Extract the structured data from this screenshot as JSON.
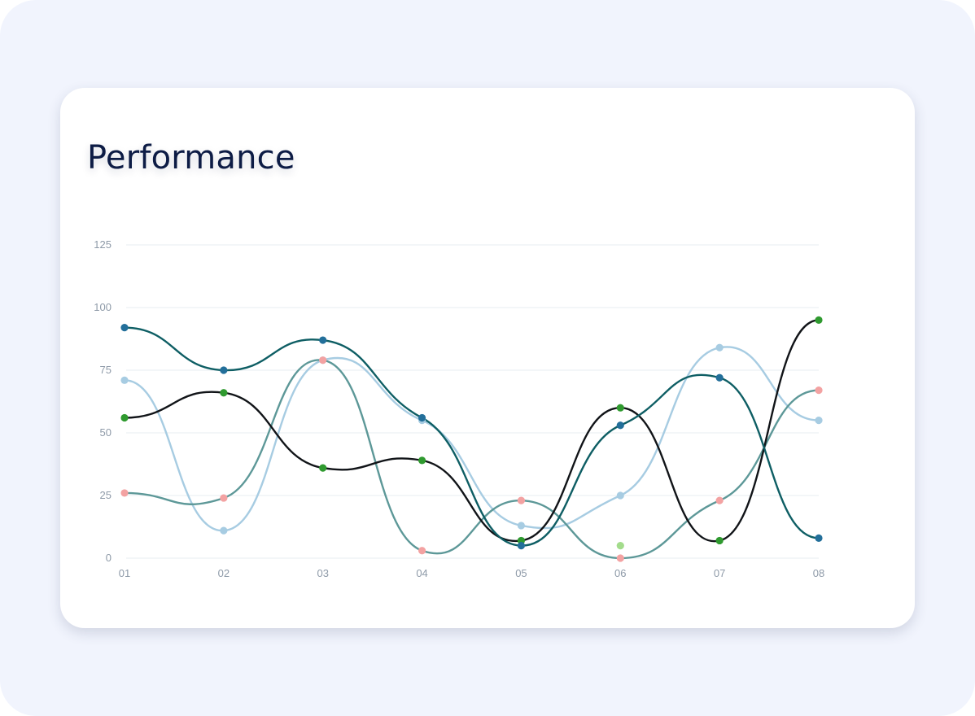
{
  "card": {
    "title": "Performance"
  },
  "chart_data": {
    "type": "line",
    "title": "Performance",
    "xlabel": "",
    "ylabel": "",
    "categories": [
      "01",
      "02",
      "03",
      "04",
      "05",
      "06",
      "07",
      "08"
    ],
    "y_ticks": [
      "0",
      "25",
      "50",
      "75",
      "100",
      "125"
    ],
    "ylim": [
      0,
      125
    ],
    "grid": true,
    "legend": "none",
    "series": [
      {
        "color": "#0e5e64",
        "marker_color": "#236f9a",
        "values": [
          92,
          75,
          87,
          56,
          5,
          53,
          72,
          8
        ]
      },
      {
        "color": "#111418",
        "marker_color": "#2f9a2f",
        "values": [
          56,
          66,
          36,
          39,
          7,
          60,
          7,
          95
        ]
      },
      {
        "color": "#a7cce2",
        "marker_color": "#a7cce2",
        "values": [
          71,
          11,
          79,
          55,
          13,
          25,
          84,
          55
        ]
      },
      {
        "color": "#5d9898",
        "marker_color": "#f3a2a2",
        "values": [
          26,
          24,
          79,
          3,
          23,
          0,
          23,
          67
        ]
      }
    ],
    "extra_points": [
      {
        "category": "06",
        "value": 5,
        "color": "#a3dc8c"
      }
    ]
  }
}
